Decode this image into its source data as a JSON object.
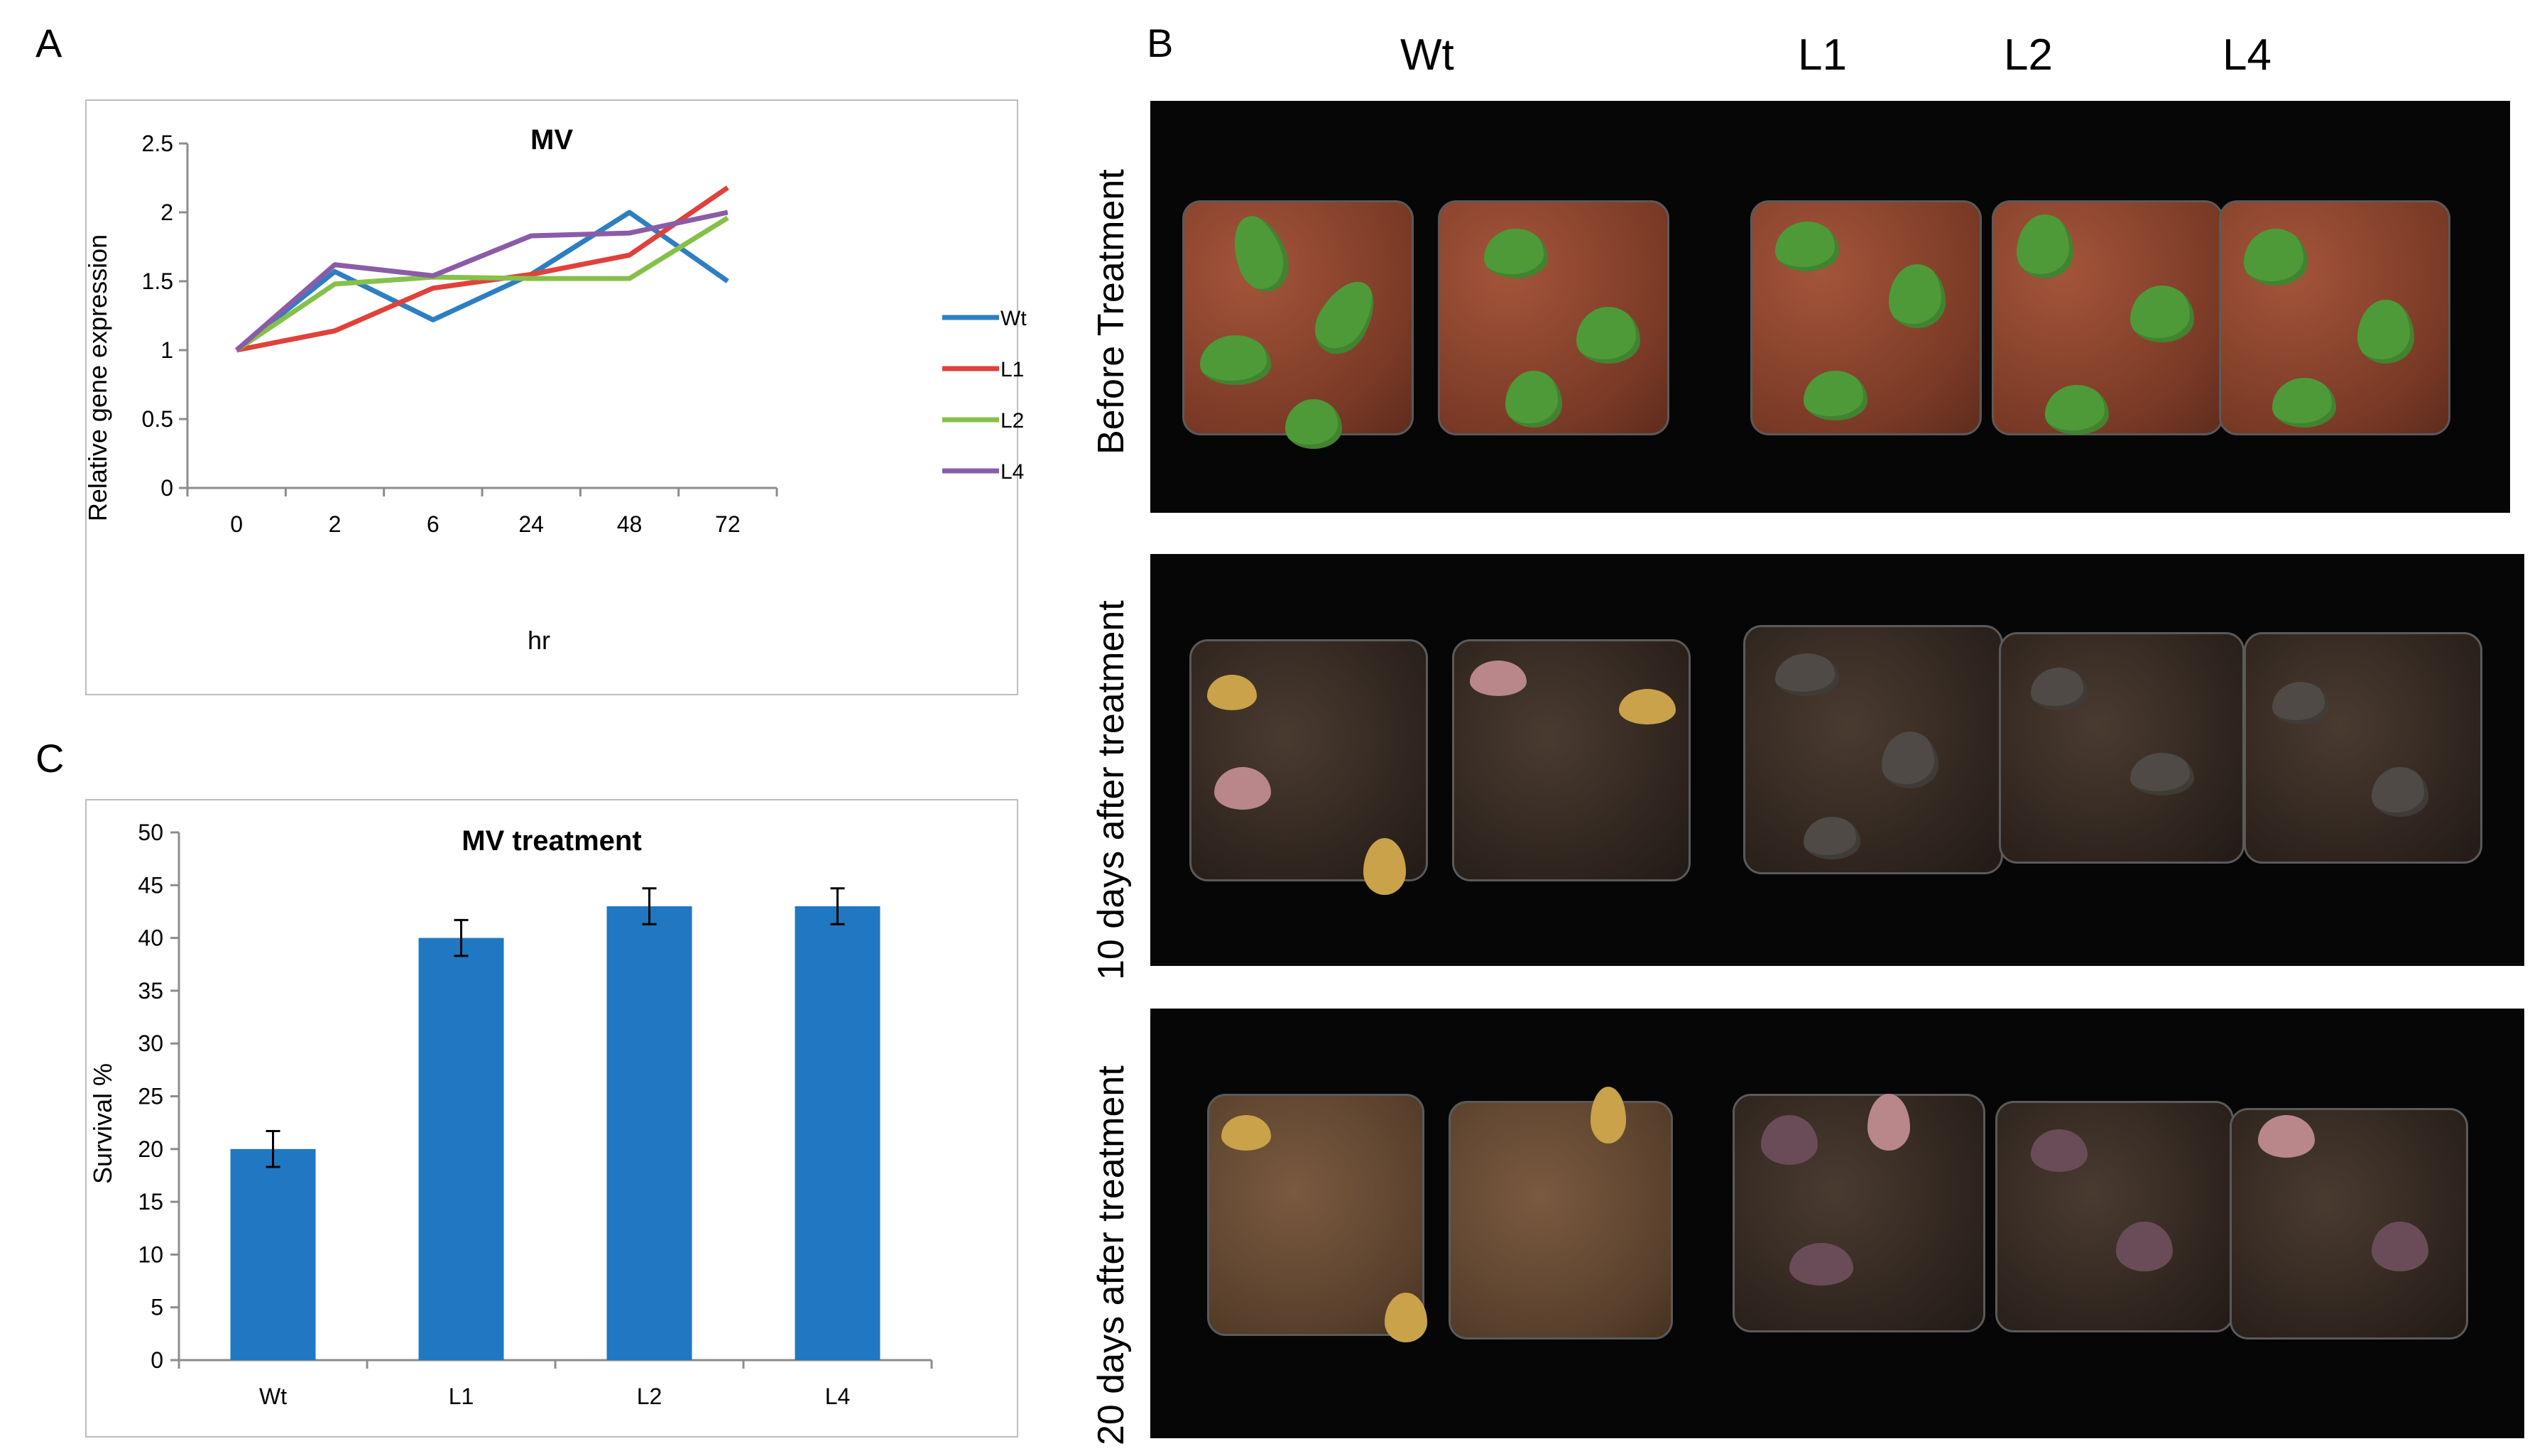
{
  "panels": {
    "a": "A",
    "b": "B",
    "c": "C"
  },
  "chart_data": [
    {
      "type": "line",
      "title": "MV",
      "xlabel": "hr",
      "ylabel": "Relative gene expression",
      "categories": [
        "0",
        "2",
        "6",
        "24",
        "48",
        "72"
      ],
      "ylim": [
        0,
        2.5
      ],
      "yticks": [
        "0",
        "0.5",
        "1",
        "1.5",
        "2",
        "2.5"
      ],
      "legend_position": "right",
      "series": [
        {
          "name": "Wt",
          "color": "#2e7fc1",
          "values": [
            1.0,
            1.57,
            1.22,
            1.55,
            2.0,
            1.5
          ]
        },
        {
          "name": "L1",
          "color": "#e0413a",
          "values": [
            1.0,
            1.14,
            1.45,
            1.55,
            1.69,
            2.18
          ]
        },
        {
          "name": "L2",
          "color": "#86c04a",
          "values": [
            1.0,
            1.48,
            1.53,
            1.52,
            1.52,
            1.96
          ]
        },
        {
          "name": "L4",
          "color": "#8a5ca8",
          "values": [
            1.0,
            1.62,
            1.54,
            1.83,
            1.85,
            2.0
          ]
        }
      ]
    },
    {
      "type": "bar",
      "title": "MV treatment",
      "xlabel": "",
      "ylabel": "Survival %",
      "categories": [
        "Wt",
        "L1",
        "L2",
        "L4"
      ],
      "values": [
        20,
        40,
        43,
        43
      ],
      "errors": [
        1.7,
        1.7,
        1.7,
        1.7
      ],
      "ylim": [
        0,
        50
      ],
      "yticks": [
        "0",
        "5",
        "10",
        "15",
        "20",
        "25",
        "30",
        "35",
        "40",
        "45",
        "50"
      ],
      "color": "#1f78c1"
    }
  ],
  "photo_panel": {
    "columns": [
      "Wt",
      "L1",
      "L2",
      "L4"
    ],
    "rows": [
      "Before Treatment",
      "10 days after treatment",
      "20 days after treatment"
    ]
  }
}
